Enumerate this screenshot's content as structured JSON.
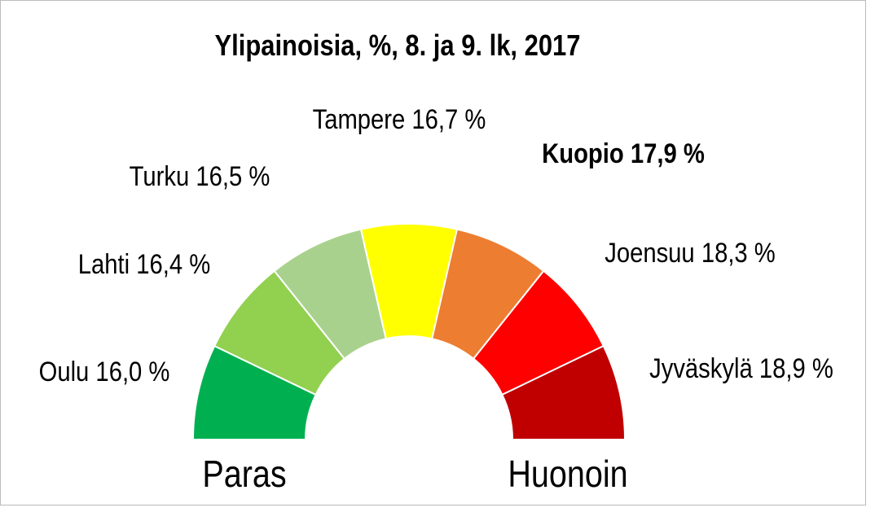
{
  "chart_data": {
    "type": "gauge",
    "title": "Ylipainoisia, %, 8. ja 9. lk, 2017",
    "categories": [
      "Oulu",
      "Lahti",
      "Turku",
      "Tampere",
      "Kuopio",
      "Joensuu",
      "Jyväskylä"
    ],
    "values": [
      16.0,
      16.4,
      16.5,
      16.7,
      17.9,
      18.3,
      18.9
    ],
    "value_labels": [
      "16,0 %",
      "16,4 %",
      "16,5 %",
      "16,7 %",
      "17,9 %",
      "18,3 %",
      "18,9 %"
    ],
    "colors": [
      "#00b050",
      "#92d050",
      "#a9d18e",
      "#ffff00",
      "#ed7d31",
      "#ff0000",
      "#c00000"
    ],
    "left_label": "Paras",
    "right_label": "Huonoin"
  }
}
